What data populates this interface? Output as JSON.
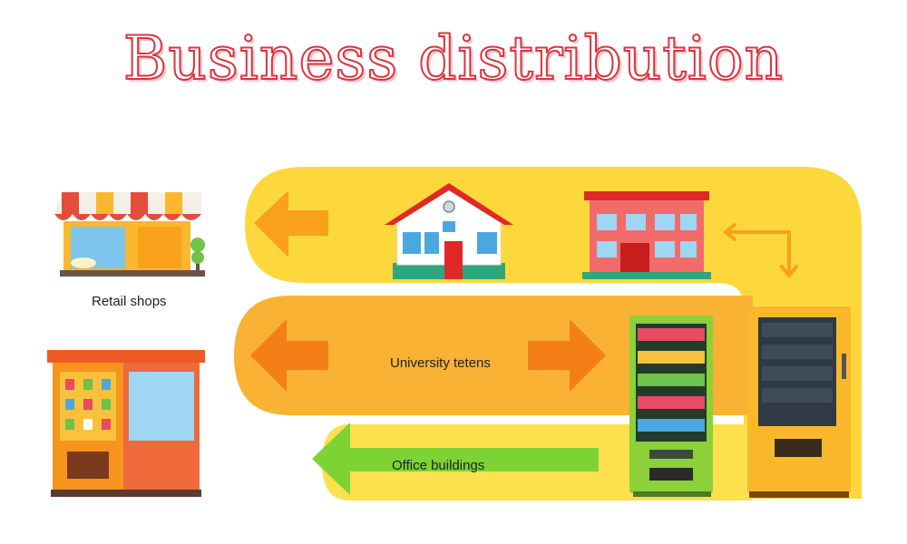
{
  "title": "Business distribution",
  "labels": {
    "retail_shops": "Retail shops",
    "university": "University tetens",
    "office_buildings": "Office buildings"
  },
  "icons": [
    "storefront-icon",
    "kiosk-icon",
    "house-icon",
    "school-building-icon",
    "snack-vending-machine-icon",
    "drink-vending-machine-icon"
  ],
  "colors": {
    "title_outline": "#d8343f",
    "band_light": "#fdd83d",
    "band_dark": "#f9b233",
    "arrow_orange": "#f57f17",
    "arrow_green": "#7dd334",
    "vending_green": "#8cd03a",
    "vending_yellow": "#f9b82c"
  }
}
